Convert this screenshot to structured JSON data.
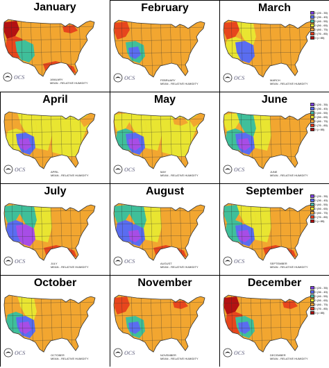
{
  "map_title": "",
  "caption_label": "MEAN - RELATIVE HUMIDITY",
  "logo_text": "OCS",
  "legend": [
    {
      "label": "0 (26 - 35)",
      "color": "#7b3fe0"
    },
    {
      "label": "0 (36 - 45)",
      "color": "#5566ee"
    },
    {
      "label": "0 (46 - 55)",
      "color": "#44bbaa"
    },
    {
      "label": "0 (56 - 65)",
      "color": "#e8e82c"
    },
    {
      "label": "0 (66 - 75)",
      "color": "#f5a033"
    },
    {
      "label": "0 (76 - 85)",
      "color": "#e23a1c"
    },
    {
      "label": "0 (> 85)",
      "color": "#aa0f0f"
    }
  ],
  "colors": {
    "land": "#f2a630",
    "dry": "#5a6df0",
    "very_dry": "#a74de6",
    "semi": "#3fbf9a",
    "moderate": "#e9e531",
    "humid": "#e7461d",
    "very_humid": "#b31212",
    "outline": "#333333"
  },
  "months": [
    {
      "title": "January",
      "caption": "JANUARY",
      "legend": false
    },
    {
      "title": "February",
      "caption": "FEBRUARY",
      "legend": false
    },
    {
      "title": "March",
      "caption": "MARCH",
      "legend": true
    },
    {
      "title": "April",
      "caption": "APRIL",
      "legend": false
    },
    {
      "title": "May",
      "caption": "MAY",
      "legend": false
    },
    {
      "title": "June",
      "caption": "JUNE",
      "legend": true
    },
    {
      "title": "July",
      "caption": "JULY",
      "legend": false
    },
    {
      "title": "August",
      "caption": "AUGUST",
      "legend": false
    },
    {
      "title": "September",
      "caption": "SEPTEMBER",
      "legend": true
    },
    {
      "title": "October",
      "caption": "OCTOBER",
      "legend": false
    },
    {
      "title": "November",
      "caption": "NOVEMBER",
      "legend": false
    },
    {
      "title": "December",
      "caption": "DECEMBER",
      "legend": true
    }
  ]
}
